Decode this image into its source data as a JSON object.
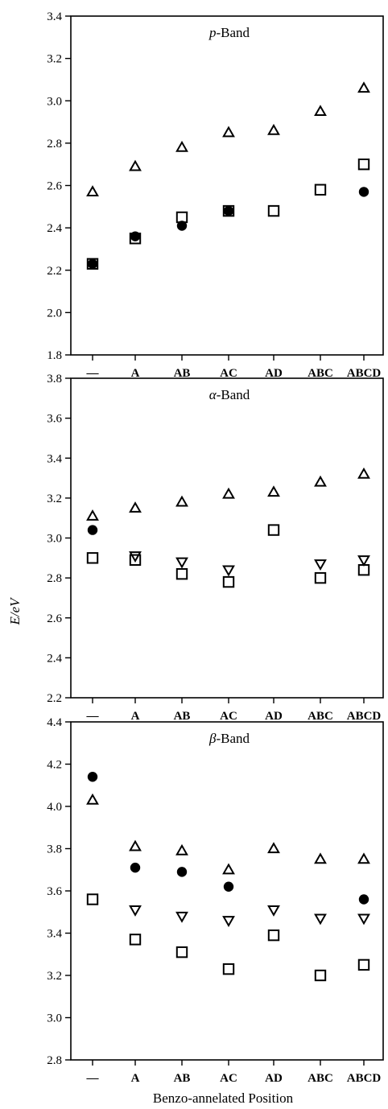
{
  "figure": {
    "ylabel": "E/eV",
    "xlabel": "Benzo-annelated Position"
  },
  "chart_data": [
    {
      "type": "scatter",
      "title": "p-Band",
      "title_italic": "p",
      "title_rest": "-Band",
      "categories": [
        "—",
        "A",
        "AB",
        "AC",
        "AD",
        "ABC",
        "ABCD"
      ],
      "ylim": [
        1.8,
        3.4
      ],
      "yticks": [
        "1.8",
        "2.0",
        "2.2",
        "2.4",
        "2.6",
        "2.8",
        "3.0",
        "3.2",
        "3.4"
      ],
      "series": [
        {
          "marker": "triangle-up-open",
          "values": [
            2.57,
            2.69,
            2.78,
            2.85,
            2.86,
            2.95,
            3.06
          ]
        },
        {
          "marker": "square-open",
          "values": [
            2.23,
            2.35,
            2.45,
            2.48,
            2.48,
            2.58,
            2.7
          ]
        },
        {
          "marker": "circle-filled",
          "values": [
            2.23,
            2.36,
            2.41,
            2.48,
            null,
            null,
            2.57
          ]
        }
      ]
    },
    {
      "type": "scatter",
      "title": "α-Band",
      "title_italic": "α",
      "title_rest": "-Band",
      "categories": [
        "—",
        "A",
        "AB",
        "AC",
        "AD",
        "ABC",
        "ABCD"
      ],
      "ylim": [
        2.2,
        3.8
      ],
      "yticks": [
        "2.2",
        "2.4",
        "2.6",
        "2.8",
        "3.0",
        "3.2",
        "3.4",
        "3.6",
        "3.8"
      ],
      "series": [
        {
          "marker": "triangle-up-open",
          "values": [
            3.11,
            3.15,
            3.18,
            3.22,
            3.23,
            3.28,
            3.32
          ]
        },
        {
          "marker": "circle-filled",
          "values": [
            3.04,
            null,
            null,
            null,
            null,
            null,
            null
          ]
        },
        {
          "marker": "square-open",
          "values": [
            2.9,
            2.89,
            2.82,
            2.78,
            3.04,
            2.8,
            2.84
          ]
        },
        {
          "marker": "triangle-down-open",
          "values": [
            null,
            2.91,
            2.88,
            2.84,
            null,
            2.87,
            2.89
          ]
        }
      ]
    },
    {
      "type": "scatter",
      "title": "β-Band",
      "title_italic": "β",
      "title_rest": "-Band",
      "categories": [
        "—",
        "A",
        "AB",
        "AC",
        "AD",
        "ABC",
        "ABCD"
      ],
      "ylim": [
        2.8,
        4.4
      ],
      "yticks": [
        "2.8",
        "3.0",
        "3.2",
        "3.4",
        "3.6",
        "3.8",
        "4.0",
        "4.2",
        "4.4"
      ],
      "series": [
        {
          "marker": "circle-filled",
          "values": [
            4.14,
            3.71,
            3.69,
            3.62,
            null,
            null,
            3.56
          ]
        },
        {
          "marker": "triangle-up-open",
          "values": [
            4.03,
            3.81,
            3.79,
            3.7,
            3.8,
            3.75,
            3.75
          ]
        },
        {
          "marker": "triangle-down-open",
          "values": [
            null,
            3.51,
            3.48,
            3.46,
            3.51,
            3.47,
            3.47
          ]
        },
        {
          "marker": "square-open",
          "values": [
            3.56,
            3.37,
            3.31,
            3.23,
            3.39,
            3.2,
            3.25
          ]
        }
      ]
    }
  ]
}
